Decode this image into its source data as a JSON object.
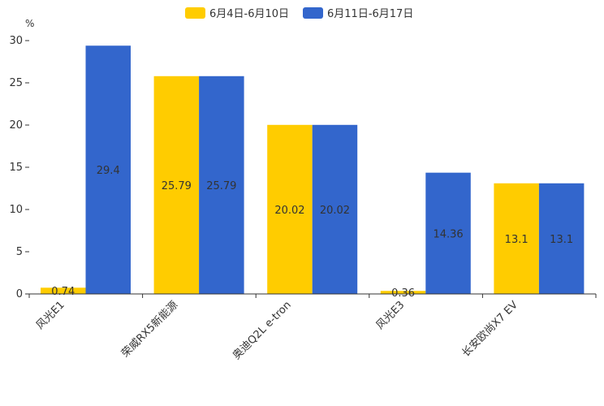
{
  "chart_data": {
    "type": "bar",
    "title": "",
    "xlabel": "",
    "ylabel": "%",
    "ylim": [
      0,
      30
    ],
    "yticks": [
      0,
      5,
      10,
      15,
      20,
      25,
      30
    ],
    "grid": false,
    "legend_position": "top-center",
    "categories": [
      "风光E1",
      "荣威RX5新能源",
      "奥迪Q2L e-tron",
      "风光E3",
      "长安欧尚X7 EV"
    ],
    "series": [
      {
        "name": "6月4日-6月10日",
        "color": "#FFCC00",
        "values": [
          0.74,
          25.79,
          20.02,
          0.36,
          13.1
        ],
        "labels": [
          "0.74",
          "25.79",
          "20.02",
          "0.36",
          "13.1"
        ]
      },
      {
        "name": "6月11日-6月17日",
        "color": "#3366CC",
        "values": [
          29.4,
          25.79,
          20.02,
          14.36,
          13.1
        ],
        "labels": [
          "29.4",
          "25.79",
          "20.02",
          "14.36",
          "13.1"
        ]
      }
    ]
  }
}
